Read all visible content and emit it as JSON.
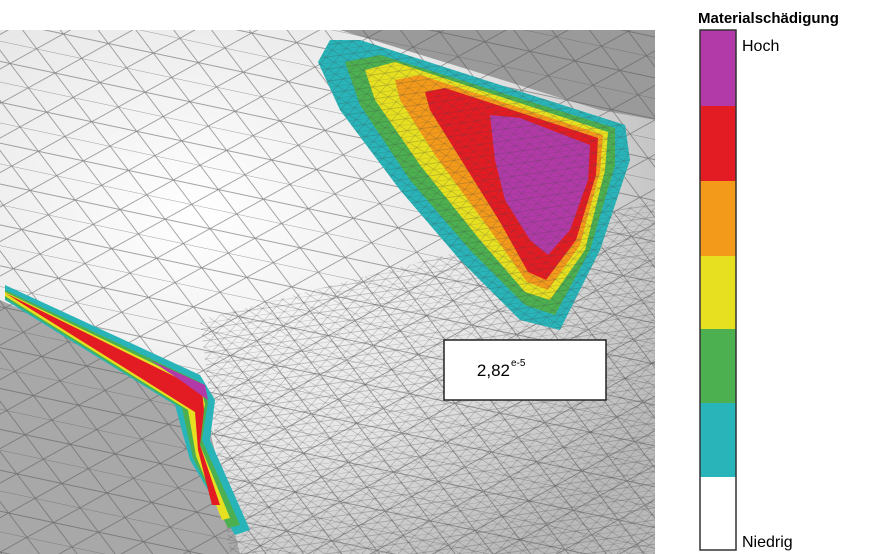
{
  "legend": {
    "title": "Materialschädigung",
    "high_label": "Hoch",
    "low_label": "Niedrig"
  },
  "value_box": {
    "mantissa": "2,82",
    "exponent": "e-5"
  }
}
